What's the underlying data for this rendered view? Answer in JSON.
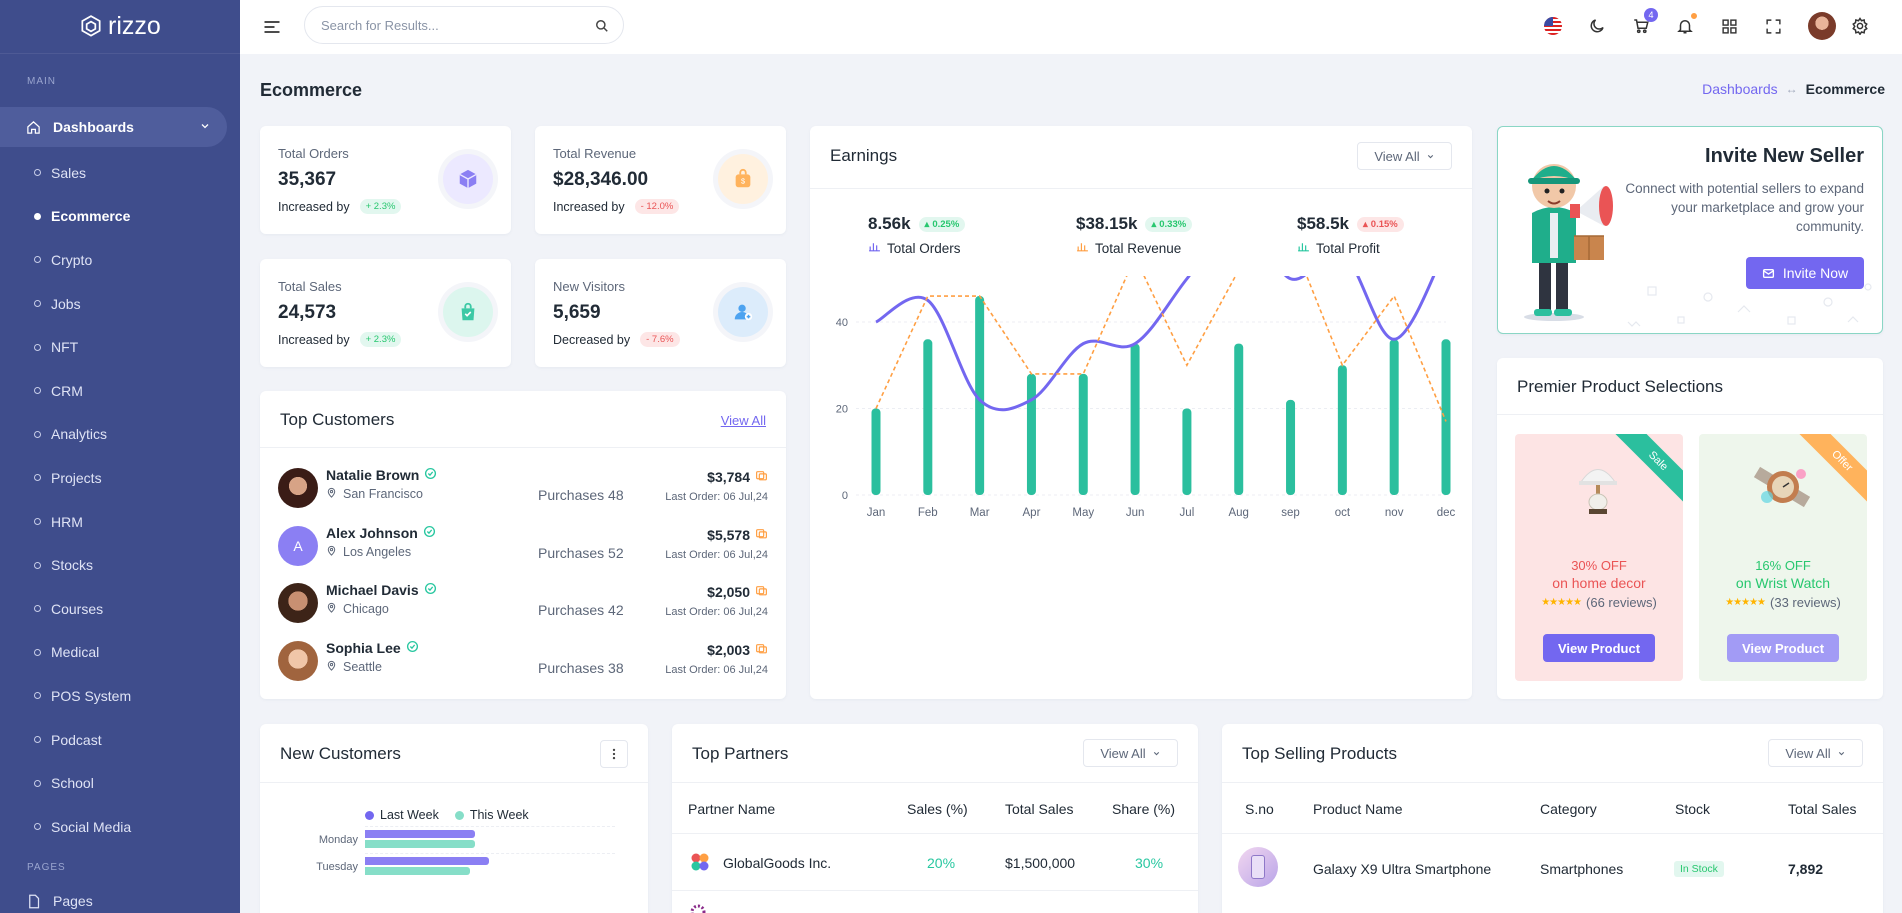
{
  "brand": {
    "name": "rizzo"
  },
  "sidebar": {
    "main_label": "MAIN",
    "dashboards_label": "Dashboards",
    "items": [
      "Sales",
      "Ecommerce",
      "Crypto",
      "Jobs",
      "NFT",
      "CRM",
      "Analytics",
      "Projects",
      "HRM",
      "Stocks",
      "Courses",
      "Medical",
      "POS System",
      "Podcast",
      "School",
      "Social Media"
    ],
    "active_item": "Ecommerce",
    "pages_label": "PAGES",
    "pages_item": "Pages"
  },
  "header": {
    "search_placeholder": "Search for Results...",
    "cart_count": "4"
  },
  "page": {
    "title": "Ecommerce",
    "breadcrumb_parent": "Dashboards",
    "breadcrumb_current": "Ecommerce"
  },
  "stats": [
    {
      "label": "Total Orders",
      "value": "35,367",
      "sub": "Increased by",
      "pct": "+ 2.3%",
      "trend": "up",
      "icon": "cube-icon",
      "color": "#7367f0",
      "bg": "#ece9ff"
    },
    {
      "label": "Total Revenue",
      "value": "$28,346.00",
      "sub": "Increased by",
      "pct": "- 12.0%",
      "trend": "down",
      "icon": "bag-icon",
      "color": "#ff9f43",
      "bg": "#fff1df"
    },
    {
      "label": "Total Sales",
      "value": "24,573",
      "sub": "Increased by",
      "pct": "+ 2.3%",
      "trend": "up",
      "icon": "shopping-bag-icon",
      "color": "#28c7a0",
      "bg": "#dcf6ee"
    },
    {
      "label": "New Visitors",
      "value": "5,659",
      "sub": "Decreased by",
      "pct": "- 7.6%",
      "trend": "down",
      "icon": "user-add-icon",
      "color": "#4da3f0",
      "bg": "#dcecfb"
    }
  ],
  "top_customers": {
    "title": "Top Customers",
    "view_all": "View All",
    "rows": [
      {
        "name": "Natalie Brown",
        "location": "San Francisco",
        "purchases": "Purchases 48",
        "amount": "$3,784",
        "last": "Last Order: 06 Jul,24",
        "avatar": "photo"
      },
      {
        "name": "Alex Johnson",
        "location": "Los Angeles",
        "purchases": "Purchases 52",
        "amount": "$5,578",
        "last": "Last Order: 06 Jul,24",
        "avatar": "A"
      },
      {
        "name": "Michael Davis",
        "location": "Chicago",
        "purchases": "Purchases 42",
        "amount": "$2,050",
        "last": "Last Order: 06 Jul,24",
        "avatar": "photo"
      },
      {
        "name": "Sophia Lee",
        "location": "Seattle",
        "purchases": "Purchases 38",
        "amount": "$2,003",
        "last": "Last Order: 06 Jul,24",
        "avatar": "photo"
      }
    ]
  },
  "earnings": {
    "title": "Earnings",
    "view_all": "View All",
    "stats": [
      {
        "value": "8.56k",
        "pct": "0.25%",
        "trend": "up",
        "label": "Total Orders",
        "color": "#7367f0"
      },
      {
        "value": "$38.15k",
        "pct": "0.33%",
        "trend": "up",
        "label": "Total Revenue",
        "color": "#ff9f43"
      },
      {
        "value": "$58.5k",
        "pct": "0.15%",
        "trend": "down",
        "label": "Total Profit",
        "color": "#28c7a0"
      }
    ]
  },
  "chart_data": {
    "type": "bar",
    "categories": [
      "Jan",
      "Feb",
      "Mar",
      "Apr",
      "May",
      "Jun",
      "Jul",
      "Aug",
      "sep",
      "oct",
      "nov",
      "dec"
    ],
    "ylim": [
      0,
      80
    ],
    "yticks": [
      0,
      20,
      40,
      60,
      80
    ],
    "series": [
      {
        "values": [
          20,
          36,
          46,
          28,
          28,
          35,
          20,
          35,
          22,
          30,
          36,
          36
        ],
        "kind": "bar",
        "color": "#2bbf9e"
      },
      {
        "values": [
          40,
          45,
          22,
          22,
          35,
          35,
          50,
          65,
          50,
          56,
          36,
          57
        ],
        "kind": "spline",
        "color": "#7367f0"
      },
      {
        "values": [
          20,
          46,
          46,
          28,
          28,
          55,
          30,
          52,
          60,
          30,
          46,
          17
        ],
        "kind": "dashed",
        "color": "#ff9f43"
      }
    ]
  },
  "invite": {
    "title": "Invite New Seller",
    "desc": "Connect with potential sellers to expand your marketplace and grow your community.",
    "button": "Invite Now"
  },
  "premier": {
    "title": "Premier Product Selections",
    "products": [
      {
        "ribbon": "Sale",
        "discount": "30% OFF",
        "name": "on home decor",
        "reviews": "(66 reviews)",
        "button": "View Product",
        "bg": "#fde4e4",
        "ribbon_color": "#2bbf9e",
        "text_color": "#ea5455"
      },
      {
        "ribbon": "Offer",
        "discount": "16% OFF",
        "name": "on Wrist Watch",
        "reviews": "(33 reviews)",
        "button": "View Product",
        "bg": "#eef6ec",
        "ribbon_color": "#ffb35c",
        "text_color": "#28c76f"
      }
    ]
  },
  "new_customers": {
    "title": "New Customers",
    "legend": [
      "Last Week",
      "This Week"
    ],
    "rows": [
      {
        "label": "Monday",
        "last": 0.58,
        "this": 0.58
      },
      {
        "label": "Tuesday",
        "last": 0.65,
        "this": 0.55
      }
    ]
  },
  "top_partners": {
    "title": "Top Partners",
    "view_all": "View All",
    "headers": [
      "Partner Name",
      "Sales (%)",
      "Total Sales",
      "Share (%)"
    ],
    "rows": [
      {
        "name": "GlobalGoods Inc.",
        "sales": "20%",
        "total": "$1,500,000",
        "share": "30%"
      }
    ]
  },
  "top_selling": {
    "title": "Top Selling Products",
    "view_all": "View All",
    "headers": [
      "S.no",
      "Product Name",
      "Category",
      "Stock",
      "Total Sales"
    ],
    "rows": [
      {
        "name": "Galaxy X9 Ultra Smartphone",
        "category": "Smartphones",
        "stock": "In Stock",
        "total": "7,892"
      }
    ]
  }
}
